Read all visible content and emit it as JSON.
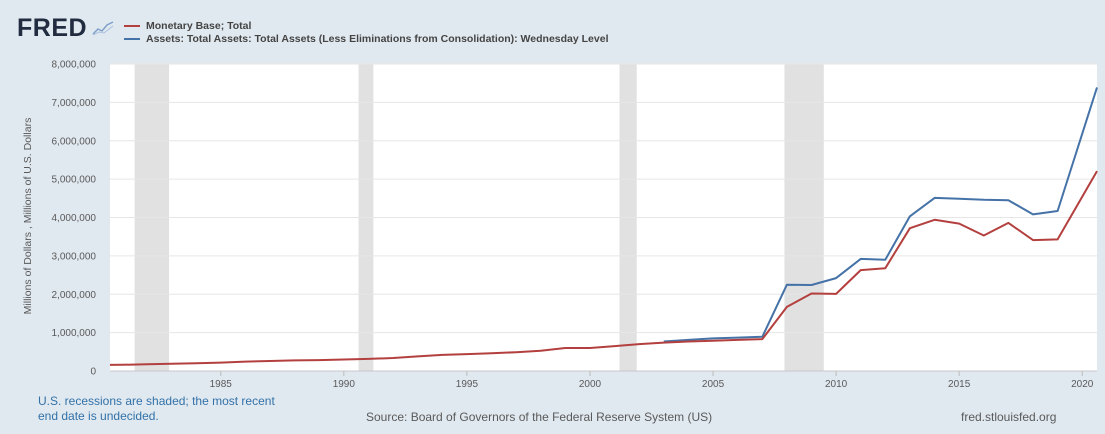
{
  "brand": {
    "name": "FRED",
    "mark": "line-chart-icon"
  },
  "legend_placement": "top-left",
  "footer": {
    "recession_note_line1": "U.S. recessions are shaded; the most recent",
    "recession_note_line2": "end date is undecided.",
    "source": "Source: Board of Governors of the Federal Reserve System (US)",
    "site": "fred.stlouisfed.org"
  },
  "colors": {
    "background": "#e1e9f0",
    "plot_background": "#ffffff",
    "recession_shade": "#e1e1e1",
    "monetary_base": "#b3403e",
    "total_assets": "#4572a7"
  },
  "chart_data": {
    "type": "line",
    "title": "",
    "xlabel": "",
    "ylabel": "Millions of Dollars , Millions of U.S. Dollars",
    "xlim": [
      1980.5,
      2020.6
    ],
    "ylim": [
      0,
      8000000
    ],
    "grid": true,
    "x_ticks": [
      1985,
      1990,
      1995,
      2000,
      2005,
      2010,
      2015,
      2020
    ],
    "y_ticks": [
      0,
      1000000,
      2000000,
      3000000,
      4000000,
      5000000,
      6000000,
      7000000,
      8000000
    ],
    "y_tick_labels": [
      "0",
      "1,000,000",
      "2,000,000",
      "3,000,000",
      "4,000,000",
      "5,000,000",
      "6,000,000",
      "7,000,000",
      "8,000,000"
    ],
    "recessions": [
      {
        "start": 1980.0,
        "end": 1980.5
      },
      {
        "start": 1981.5,
        "end": 1982.9
      },
      {
        "start": 1990.6,
        "end": 1991.2
      },
      {
        "start": 2001.2,
        "end": 2001.9
      },
      {
        "start": 2007.9,
        "end": 2009.5
      }
    ],
    "series": [
      {
        "name": "Monetary Base; Total",
        "color": "#b3403e",
        "x": [
          1980.5,
          1981,
          1982,
          1983,
          1984,
          1985,
          1986,
          1987,
          1988,
          1989,
          1990,
          1991,
          1992,
          1993,
          1994,
          1995,
          1996,
          1997,
          1998,
          1999,
          2000,
          2001,
          2002,
          2003,
          2004,
          2005,
          2006,
          2007,
          2008,
          2009,
          2010,
          2011,
          2012,
          2013,
          2014,
          2015,
          2016,
          2017,
          2018,
          2019,
          2020.6
        ],
        "values": [
          160000,
          162000,
          175000,
          190000,
          200000,
          220000,
          245000,
          260000,
          275000,
          285000,
          300000,
          315000,
          340000,
          380000,
          420000,
          440000,
          460000,
          490000,
          530000,
          600000,
          600000,
          650000,
          700000,
          740000,
          770000,
          790000,
          810000,
          830000,
          1670000,
          2020000,
          2010000,
          2630000,
          2680000,
          3720000,
          3940000,
          3840000,
          3530000,
          3860000,
          3410000,
          3430000,
          5210000
        ]
      },
      {
        "name": "Assets: Total Assets: Total Assets (Less Eliminations from Consolidation): Wednesday Level",
        "color": "#4572a7",
        "x": [
          2003,
          2004,
          2005,
          2006,
          2007,
          2008,
          2009,
          2010,
          2011,
          2012,
          2013,
          2014,
          2015,
          2016,
          2017,
          2018,
          2019,
          2020.6
        ],
        "values": [
          770000,
          810000,
          850000,
          870000,
          890000,
          2250000,
          2240000,
          2420000,
          2920000,
          2900000,
          4030000,
          4510000,
          4490000,
          4460000,
          4450000,
          4080000,
          4170000,
          7390000
        ]
      }
    ]
  }
}
